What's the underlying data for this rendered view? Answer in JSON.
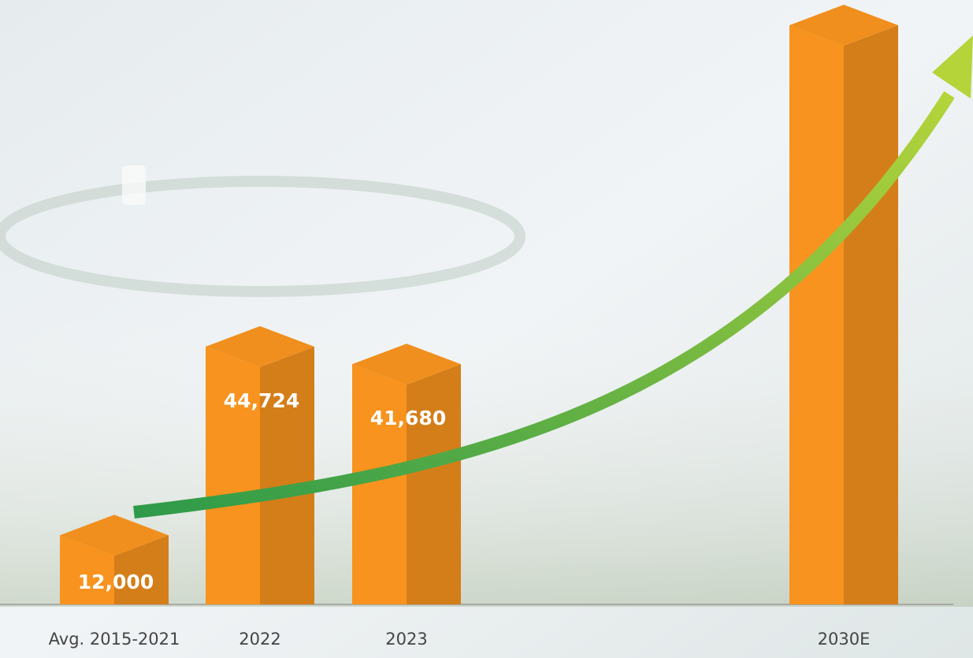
{
  "chart_data": {
    "type": "bar3d",
    "categories": [
      "Avg. 2015-2021",
      "2022",
      "2023",
      "2030E"
    ],
    "values": [
      12000,
      44724,
      41680,
      100500
    ],
    "value_labels": [
      "12,000",
      "44,724",
      "41,680",
      null
    ],
    "color": "#f7931e"
  }
}
